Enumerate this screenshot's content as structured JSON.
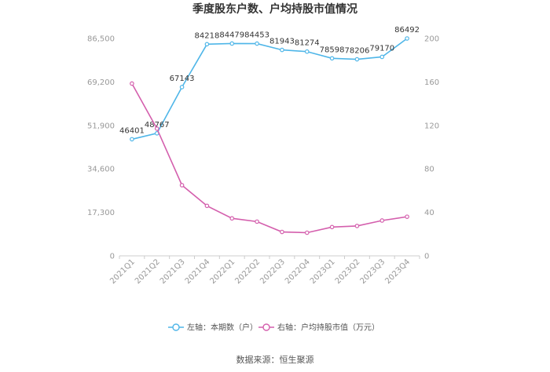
{
  "chart_data": {
    "type": "line",
    "title": "季度股东户数、户均持股市值情况",
    "categories": [
      "2021Q1",
      "2021Q2",
      "2021Q3",
      "2021Q4",
      "2022Q1",
      "2022Q2",
      "2022Q3",
      "2022Q4",
      "2023Q1",
      "2023Q2",
      "2023Q3",
      "2023Q4"
    ],
    "left_axis": {
      "min": 0,
      "max": 86500,
      "ticks": [
        "0",
        "17,300",
        "34,600",
        "51,900",
        "69,200",
        "86,500"
      ]
    },
    "right_axis": {
      "min": 0,
      "max": 200,
      "ticks": [
        "0",
        "40",
        "80",
        "120",
        "160",
        "200"
      ]
    },
    "series": [
      {
        "name": "左轴：本期数（户）",
        "axis": "left",
        "color": "#4fb6e8",
        "values": [
          46401,
          48767,
          67143,
          84218,
          84479,
          84453,
          81943,
          81274,
          78598,
          78206,
          79170,
          86492
        ],
        "labels": [
          "46401",
          "48767",
          "67143",
          "84218",
          "84479",
          "84453",
          "81943",
          "81274",
          "78598",
          "78206",
          "79170",
          "86492"
        ]
      },
      {
        "name": "右轴：户均持股市值（万元）",
        "axis": "right",
        "color": "#d45fad",
        "values": [
          158.5,
          117,
          65,
          46,
          34.5,
          31.5,
          22,
          21.3,
          26.5,
          27.5,
          32.5,
          36
        ]
      }
    ],
    "legend_position": "bottom",
    "grid": false
  },
  "source": "数据来源：恒生聚源"
}
